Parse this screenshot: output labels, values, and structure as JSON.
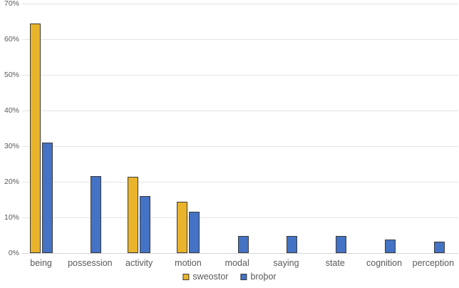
{
  "chart_data": {
    "type": "bar",
    "title": "",
    "categories": [
      "being",
      "possession",
      "activity",
      "motion",
      "modal",
      "saying",
      "state",
      "cognition",
      "perception"
    ],
    "series": [
      {
        "key": "sweostor",
        "name": "sweostor",
        "color": "#e9b32b",
        "values": [
          64.4,
          null,
          21.4,
          14.3,
          null,
          null,
          null,
          null,
          null
        ]
      },
      {
        "key": "brothor",
        "name": "broþor",
        "color": "#4472c4",
        "values": [
          31.0,
          21.5,
          15.9,
          11.6,
          4.8,
          4.8,
          4.8,
          3.7,
          3.1
        ]
      }
    ],
    "ylim": [
      0,
      70
    ],
    "ytick_step": 10,
    "ytick_labels": [
      "0%",
      "10%",
      "20%",
      "30%",
      "40%",
      "50%",
      "60%",
      "70%"
    ],
    "xlabel": "",
    "ylabel": "",
    "grid": true,
    "legend_position": "bottom",
    "bar_border_color": "#3b3b3b"
  }
}
